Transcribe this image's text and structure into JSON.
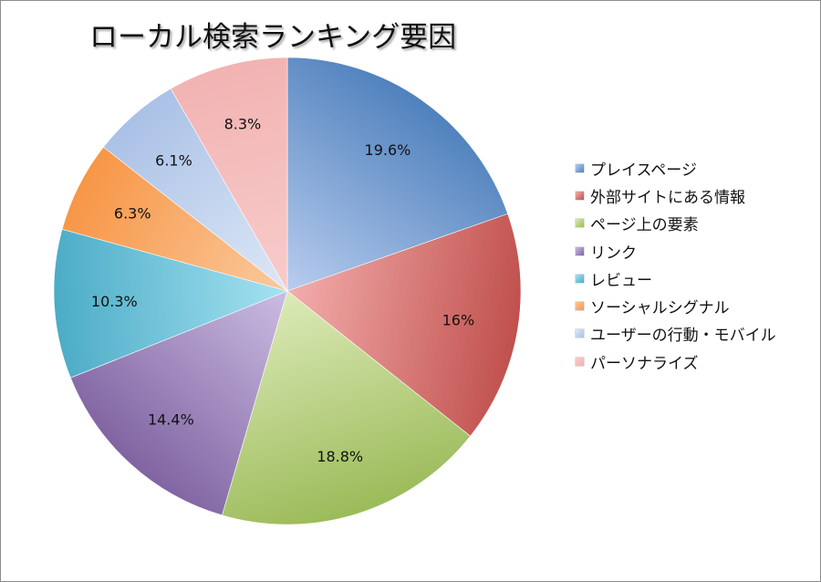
{
  "chart_data": {
    "type": "pie",
    "title": "ローカル検索ランキング要因",
    "categories": [
      "プレイスページ",
      "外部サイトにある情報",
      "ページ上の要素",
      "リンク",
      "レビュー",
      "ソーシャルシグナル",
      "ユーザーの行動・モバイル",
      "パーソナライズ"
    ],
    "values": [
      19.6,
      16,
      18.8,
      14.4,
      10.3,
      6.3,
      6.1,
      8.3
    ],
    "value_labels": [
      "19.6%",
      "16%",
      "18.8%",
      "14.4%",
      "10.3%",
      "6.3%",
      "6.1%",
      "8.3%"
    ],
    "colors": [
      "#4f81bd",
      "#c0504d",
      "#9bbb59",
      "#8064a2",
      "#4bacc6",
      "#f79646",
      "#aac1e6",
      "#f2b3b2"
    ],
    "light_colors": [
      "#b9cdef",
      "#f3aeac",
      "#dceab8",
      "#cbbde2",
      "#a6e2f2",
      "#fbc99d",
      "#dde8f7",
      "#f7cccb"
    ],
    "start": "12 o'clock, clockwise",
    "legend_position": "right"
  }
}
